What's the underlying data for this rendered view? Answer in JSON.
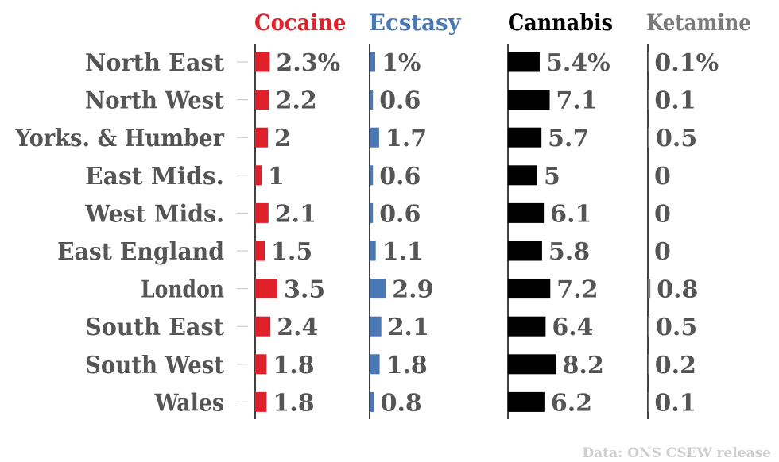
{
  "chart_data": {
    "type": "bar",
    "orientation": "horizontal",
    "unit_suffix_first_row": "%",
    "categories": [
      "North East",
      "North West",
      "Yorks. & Humber",
      "East Mids.",
      "West Mids.",
      "East England",
      "London",
      "South East",
      "South West",
      "Wales"
    ],
    "series": [
      {
        "name": "Cocaine",
        "color": "#e0202a",
        "values": [
          2.3,
          2.2,
          2,
          1,
          2.1,
          1.5,
          3.5,
          2.4,
          1.8,
          1.8
        ]
      },
      {
        "name": "Ecstasy",
        "color": "#4a78b5",
        "values": [
          1,
          0.6,
          1.7,
          0.6,
          0.6,
          1.1,
          2.9,
          2.1,
          1.8,
          0.8
        ]
      },
      {
        "name": "Cannabis",
        "color": "#000000",
        "values": [
          5.4,
          7.1,
          5.7,
          5,
          6.1,
          5.8,
          7.2,
          6.4,
          8.2,
          6.2
        ]
      },
      {
        "name": "Ketamine",
        "color": "#7a7a7a",
        "values": [
          0.1,
          0.1,
          0.5,
          0,
          0,
          0,
          0.8,
          0.5,
          0.2,
          0.1
        ]
      }
    ],
    "grid": false,
    "legend": "column headers",
    "source": "Data: ONS CSEW release"
  }
}
